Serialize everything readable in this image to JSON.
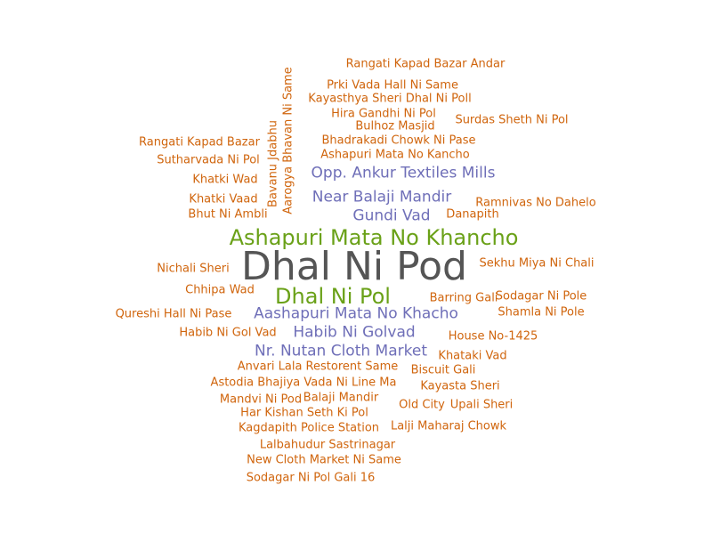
{
  "colors": {
    "large": "#555555",
    "medium": "#6aa118",
    "small": "#6f6fb8",
    "tiny": "#d0650d"
  },
  "words": [
    {
      "text": "Dhal Ni Pod",
      "color": "large"
    },
    {
      "text": "Ashapuri Mata No Khancho",
      "color": "medium"
    },
    {
      "text": "Dhal Ni Pol",
      "color": "medium"
    },
    {
      "text": "Opp. Ankur Textiles Mills",
      "color": "small"
    },
    {
      "text": "Near Balaji Mandir",
      "color": "small"
    },
    {
      "text": "Gundi Vad",
      "color": "small"
    },
    {
      "text": "Aashapuri Mata No Khacho",
      "color": "small"
    },
    {
      "text": "Habib Ni Golvad",
      "color": "small"
    },
    {
      "text": "Nr. Nutan Cloth Market",
      "color": "small"
    },
    {
      "text": "Rangati Kapad Bazar Andar",
      "color": "tiny"
    },
    {
      "text": "Prki Vada Hall Ni Same",
      "color": "tiny"
    },
    {
      "text": "Kayasthya Sheri Dhal Ni Poll",
      "color": "tiny"
    },
    {
      "text": "Hira Gandhi Ni Pol",
      "color": "tiny"
    },
    {
      "text": "Surdas Sheth Ni Pol",
      "color": "tiny"
    },
    {
      "text": "Bulhoz Masjid",
      "color": "tiny"
    },
    {
      "text": "Rangati Kapad Bazar",
      "color": "tiny"
    },
    {
      "text": "Bhadrakadi Chowk Ni Pase",
      "color": "tiny"
    },
    {
      "text": "Ashapuri Mata No Kancho",
      "color": "tiny"
    },
    {
      "text": "Sutharvada Ni Pol",
      "color": "tiny"
    },
    {
      "text": "Khatki Wad",
      "color": "tiny"
    },
    {
      "text": "Khatki Vaad",
      "color": "tiny"
    },
    {
      "text": "Ramnivas No Dahelo",
      "color": "tiny"
    },
    {
      "text": "Bhut Ni Ambli",
      "color": "tiny"
    },
    {
      "text": "Danapith",
      "color": "tiny"
    },
    {
      "text": "Nichali Sheri",
      "color": "tiny"
    },
    {
      "text": "Sekhu Miya Ni Chali",
      "color": "tiny"
    },
    {
      "text": "Chhipa Wad",
      "color": "tiny"
    },
    {
      "text": "Barring Gali",
      "color": "tiny"
    },
    {
      "text": "Sodagar Ni Pole",
      "color": "tiny"
    },
    {
      "text": "Qureshi Hall Ni Pase",
      "color": "tiny"
    },
    {
      "text": "Shamla Ni Pole",
      "color": "tiny"
    },
    {
      "text": "Habib Ni Gol Vad",
      "color": "tiny"
    },
    {
      "text": "House No-1425",
      "color": "tiny"
    },
    {
      "text": "Khataki Vad",
      "color": "tiny"
    },
    {
      "text": "Anvari Lala Restorent Same",
      "color": "tiny"
    },
    {
      "text": "Biscuit Gali",
      "color": "tiny"
    },
    {
      "text": "Astodia Bhajiya Vada Ni Line Ma",
      "color": "tiny"
    },
    {
      "text": "Kayasta Sheri",
      "color": "tiny"
    },
    {
      "text": "Mandvi Ni Pod",
      "color": "tiny"
    },
    {
      "text": "Balaji Mandir",
      "color": "tiny"
    },
    {
      "text": "Old City",
      "color": "tiny"
    },
    {
      "text": "Upali Sheri",
      "color": "tiny"
    },
    {
      "text": "Har Kishan Seth Ki Pol",
      "color": "tiny"
    },
    {
      "text": "Kagdapith Police Station",
      "color": "tiny"
    },
    {
      "text": "Lalji Maharaj Chowk",
      "color": "tiny"
    },
    {
      "text": "Lalbahudur Sastrinagar",
      "color": "tiny"
    },
    {
      "text": "New Cloth Market Ni Same",
      "color": "tiny"
    },
    {
      "text": "Sodagar Ni Pol Gali 16",
      "color": "tiny"
    },
    {
      "text": "Bavanu Jdabhu",
      "color": "tiny"
    },
    {
      "text": "Aarogya Bhavan Ni Same",
      "color": "tiny"
    }
  ]
}
